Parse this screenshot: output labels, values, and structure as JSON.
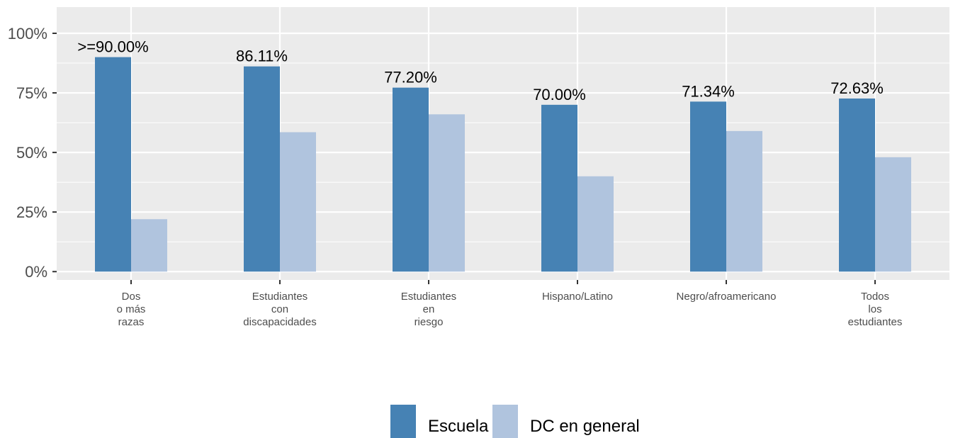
{
  "colors": {
    "panel_background": "#ebebeb",
    "gridline": "#ffffff",
    "school": "#4682b4",
    "dc_overall": "#b0c4de"
  },
  "chart_data": {
    "type": "bar",
    "categories": [
      [
        "Dos",
        "o más",
        "razas"
      ],
      [
        "Estudiantes",
        "con",
        "discapacidades"
      ],
      [
        "Estudiantes",
        "en",
        "riesgo"
      ],
      [
        "Hispano/Latino"
      ],
      [
        "Negro/afroamericano"
      ],
      [
        "Todos",
        "los",
        "estudiantes"
      ]
    ],
    "series": [
      {
        "name": "Escuela",
        "values": [
          90.0,
          86.11,
          77.2,
          70.0,
          71.34,
          72.63
        ],
        "labels": [
          ">=90.00%",
          "86.11%",
          "77.20%",
          "70.00%",
          "71.34%",
          "72.63%"
        ]
      },
      {
        "name": "DC en general",
        "values": [
          22,
          58.5,
          66,
          40,
          59,
          48
        ]
      }
    ],
    "y_ticks": [
      {
        "value": 0,
        "label": "0%"
      },
      {
        "value": 25,
        "label": "25%"
      },
      {
        "value": 50,
        "label": "50%"
      },
      {
        "value": 75,
        "label": "75%"
      },
      {
        "value": 100,
        "label": "100%"
      }
    ],
    "ylim": [
      -3.5,
      111
    ],
    "grid": true,
    "legend_position": "bottom"
  }
}
